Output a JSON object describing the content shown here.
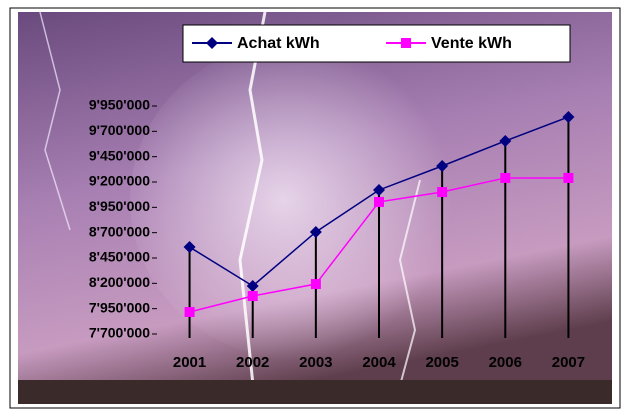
{
  "chart_data": {
    "type": "line",
    "categories": [
      "2001",
      "2002",
      "2003",
      "2004",
      "2005",
      "2006",
      "2007"
    ],
    "series": [
      {
        "name": "Achat kWh",
        "color": "#000080",
        "marker": "diamond",
        "values": [
          8558000,
          8174000,
          8707000,
          9121000,
          9358000,
          9605000,
          9842000
        ]
      },
      {
        "name": "Vente kWh",
        "color": "#ff00ff",
        "marker": "square",
        "values": [
          7917000,
          8075000,
          8193000,
          9003000,
          9101000,
          9240000,
          9240000
        ]
      }
    ],
    "ylim": [
      7700000,
      9950000
    ],
    "yticks": [
      {
        "value": 7700000,
        "label": "7'700'000"
      },
      {
        "value": 7950000,
        "label": "7'950'000"
      },
      {
        "value": 8200000,
        "label": "8'200'000"
      },
      {
        "value": 8450000,
        "label": "8'450'000"
      },
      {
        "value": 8700000,
        "label": "8'700'000"
      },
      {
        "value": 8950000,
        "label": "8'950'000"
      },
      {
        "value": 9200000,
        "label": "9'200'000"
      },
      {
        "value": 9450000,
        "label": "9'450'000"
      },
      {
        "value": 9700000,
        "label": "9'700'000"
      },
      {
        "value": 9950000,
        "label": "9'950'000"
      }
    ],
    "drop_lines": true,
    "legend": "top"
  }
}
